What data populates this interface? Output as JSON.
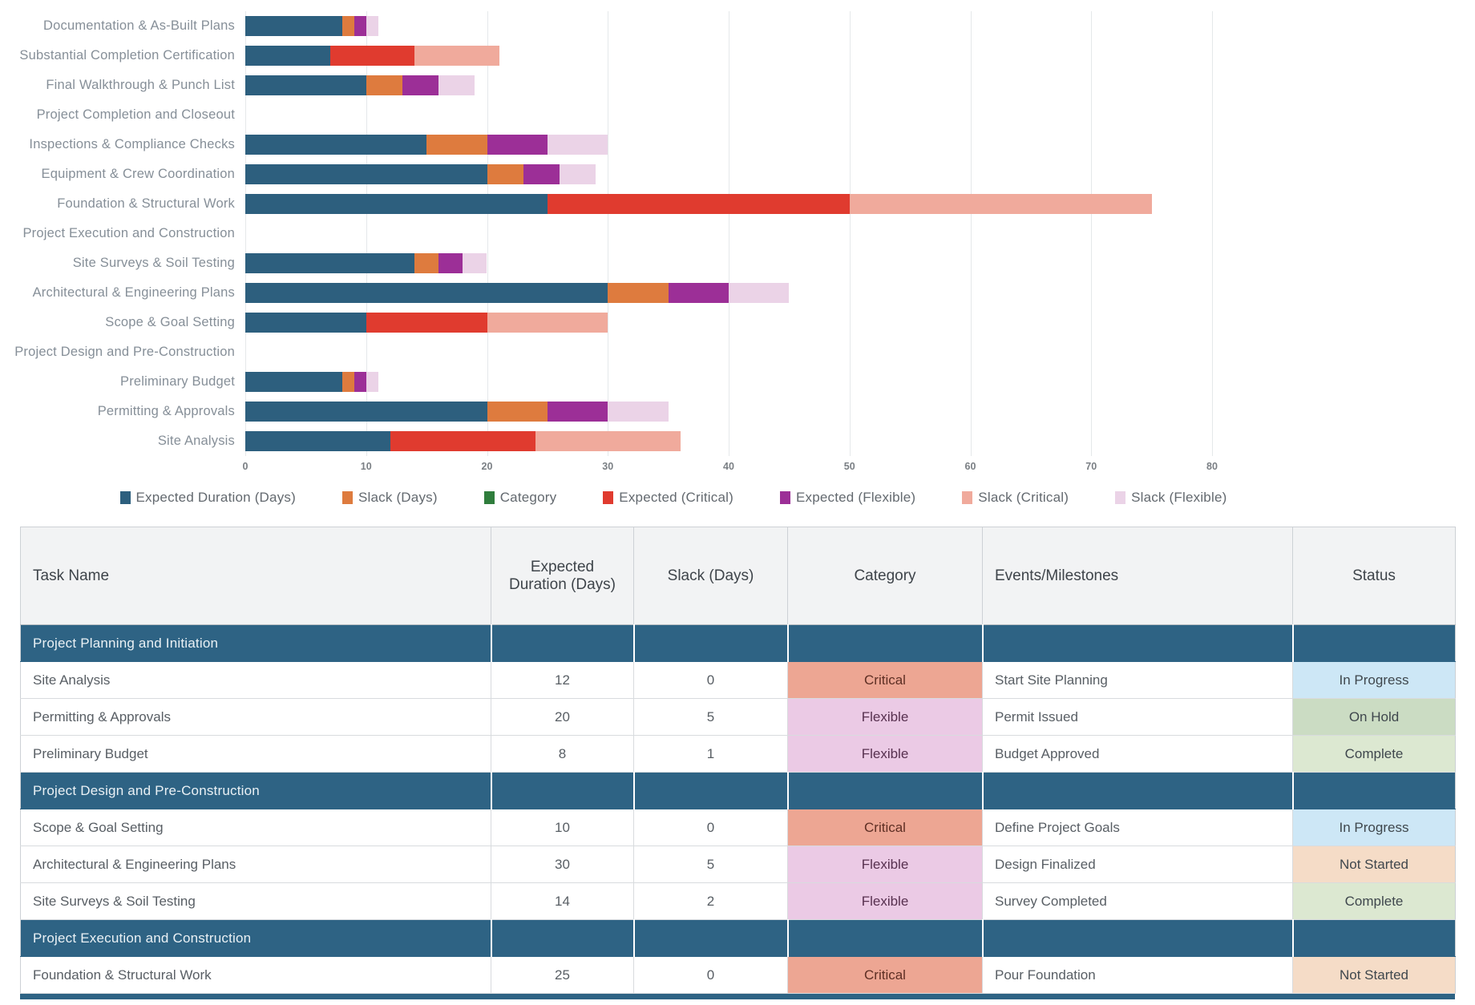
{
  "chart_data": {
    "type": "bar",
    "orientation": "horizontal",
    "stacked": true,
    "title": "",
    "xlabel": "",
    "ylabel": "",
    "xlim": [
      0,
      80
    ],
    "xticks": [
      0,
      10,
      20,
      30,
      40,
      50,
      60,
      70,
      80
    ],
    "grid": "vertical",
    "legend_position": "bottom",
    "categories": [
      "Documentation & As-Built Plans",
      "Substantial Completion Certification",
      "Final Walkthrough & Punch List",
      "Project Completion and Closeout",
      "Inspections & Compliance Checks",
      "Equipment & Crew Coordination",
      "Foundation & Structural Work",
      "Project Execution and Construction",
      "Site Surveys & Soil Testing",
      "Architectural & Engineering Plans",
      "Scope & Goal Setting",
      "Project Design and Pre-Construction",
      "Preliminary Budget",
      "Permitting & Approvals",
      "Site Analysis"
    ],
    "series": [
      {
        "name": "Expected Duration (Days)",
        "color": "#2d5f7e",
        "values": [
          8,
          7,
          10,
          0,
          15,
          20,
          25,
          0,
          14,
          30,
          10,
          0,
          8,
          20,
          12
        ]
      },
      {
        "name": "Slack (Days)",
        "color": "#de7b3e",
        "values": [
          1,
          0,
          3,
          0,
          5,
          3,
          0,
          0,
          2,
          5,
          0,
          0,
          1,
          5,
          0
        ]
      },
      {
        "name": "Category",
        "color": "#2f7d3c",
        "values": [
          0,
          0,
          0,
          0,
          0,
          0,
          0,
          0,
          0,
          0,
          0,
          0,
          0,
          0,
          0
        ]
      },
      {
        "name": "Expected (Critical)",
        "color": "#e03b2f",
        "values": [
          0,
          7,
          0,
          0,
          0,
          0,
          25,
          0,
          0,
          0,
          10,
          0,
          0,
          0,
          12
        ]
      },
      {
        "name": "Expected (Flexible)",
        "color": "#9c2f97",
        "values": [
          1,
          0,
          3,
          0,
          5,
          3,
          0,
          0,
          2,
          5,
          0,
          0,
          1,
          5,
          0
        ]
      },
      {
        "name": "Slack (Critical)",
        "color": "#f0aa9c",
        "values": [
          0,
          7,
          0,
          0,
          0,
          0,
          25,
          0,
          0,
          0,
          10,
          0,
          0,
          0,
          12
        ]
      },
      {
        "name": "Slack (Flexible)",
        "color": "#ebd3e7",
        "values": [
          1,
          0,
          3,
          0,
          5,
          3,
          0,
          0,
          2,
          5,
          0,
          0,
          1,
          5,
          0
        ]
      }
    ]
  },
  "table": {
    "headers": [
      "Task Name",
      "Expected Duration (Days)",
      "Slack (Days)",
      "Category",
      "Events/Milestones",
      "Status"
    ],
    "category_colors": {
      "Critical": "#eda693",
      "Flexible": "#ebcae5"
    },
    "status_colors": {
      "In Progress": "#cde7f6",
      "On Hold": "#cbdcc3",
      "Complete": "#dce8d1",
      "Not Started": "#f5dcc7"
    },
    "section_bg": "#2e6384",
    "sections": [
      {
        "name": "Project Planning and Initiation",
        "rows": [
          {
            "task": "Site Analysis",
            "expected": "12",
            "slack": "0",
            "category": "Critical",
            "milestone": "Start Site Planning",
            "status": "In Progress"
          },
          {
            "task": "Permitting & Approvals",
            "expected": "20",
            "slack": "5",
            "category": "Flexible",
            "milestone": "Permit Issued",
            "status": "On Hold"
          },
          {
            "task": "Preliminary Budget",
            "expected": "8",
            "slack": "1",
            "category": "Flexible",
            "milestone": "Budget Approved",
            "status": "Complete"
          }
        ]
      },
      {
        "name": "Project Design and Pre-Construction",
        "rows": [
          {
            "task": "Scope & Goal Setting",
            "expected": "10",
            "slack": "0",
            "category": "Critical",
            "milestone": "Define Project Goals",
            "status": "In Progress"
          },
          {
            "task": "Architectural & Engineering Plans",
            "expected": "30",
            "slack": "5",
            "category": "Flexible",
            "milestone": "Design Finalized",
            "status": "Not Started"
          },
          {
            "task": "Site Surveys & Soil Testing",
            "expected": "14",
            "slack": "2",
            "category": "Flexible",
            "milestone": "Survey Completed",
            "status": "Complete"
          }
        ]
      },
      {
        "name": "Project Execution and Construction",
        "rows": [
          {
            "task": "Foundation & Structural Work",
            "expected": "25",
            "slack": "0",
            "category": "Critical",
            "milestone": "Pour Foundation",
            "status": "Not Started"
          }
        ]
      }
    ]
  }
}
